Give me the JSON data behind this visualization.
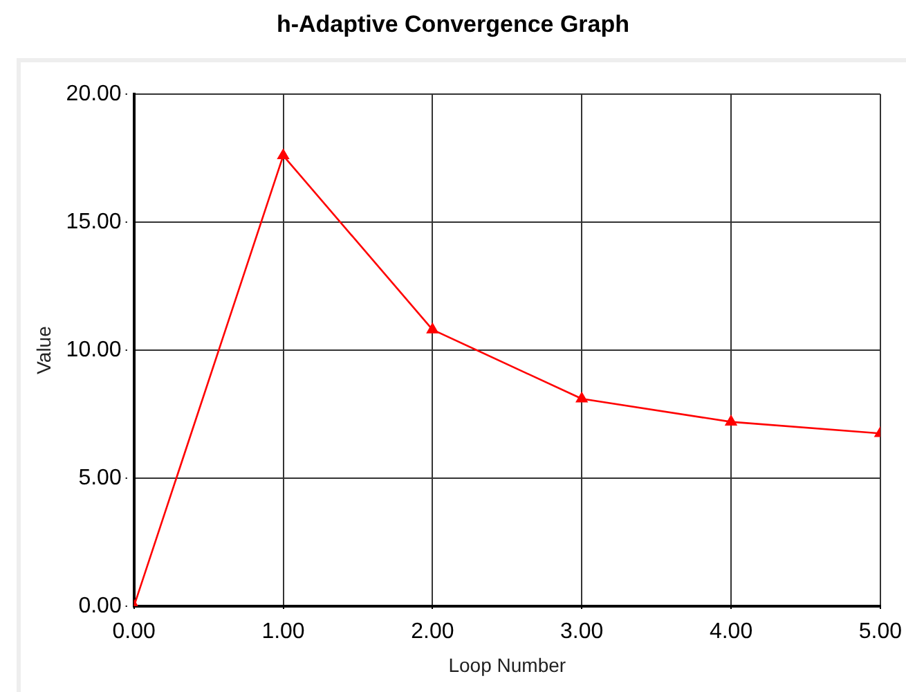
{
  "chart_data": {
    "type": "line",
    "title": "h-Adaptive Convergence Graph",
    "xlabel": "Loop Number",
    "ylabel": "Value",
    "x": [
      0,
      1,
      2,
      3,
      4,
      5
    ],
    "series": [
      {
        "color": "#ff0000",
        "values": [
          0,
          17.6,
          10.8,
          8.1,
          7.2,
          6.75
        ]
      }
    ],
    "xlim": [
      0,
      5
    ],
    "xticks": [
      {
        "value": 0,
        "label": "0.00"
      },
      {
        "value": 1,
        "label": "1.00"
      },
      {
        "value": 2,
        "label": "2.00"
      },
      {
        "value": 3,
        "label": "3.00"
      },
      {
        "value": 4,
        "label": "4.00"
      },
      {
        "value": 5,
        "label": "5.00"
      }
    ],
    "ylim": [
      0,
      20
    ],
    "yticks": [
      {
        "value": 0,
        "label": "0.00"
      },
      {
        "value": 5,
        "label": "5.00"
      },
      {
        "value": 10,
        "label": "10.00"
      },
      {
        "value": 15,
        "label": "15.00"
      },
      {
        "value": 20,
        "label": "20.00"
      }
    ],
    "grid": true,
    "marker": "triangle",
    "line_style": "solid",
    "legend": false
  }
}
